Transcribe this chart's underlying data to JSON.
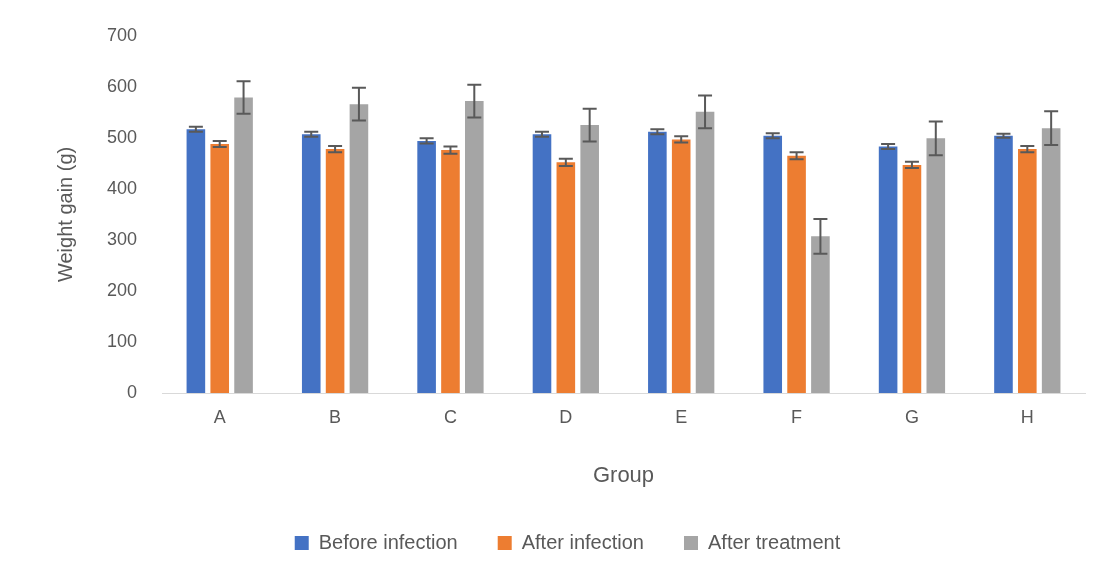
{
  "chart_data": {
    "type": "bar",
    "xlabel": "Group",
    "ylabel": "Weight gain (g)",
    "categories": [
      "A",
      "B",
      "C",
      "D",
      "E",
      "F",
      "G",
      "H"
    ],
    "series": [
      {
        "name": "Before infection",
        "color": "#4472c4",
        "values": [
          517,
          507,
          494,
          507,
          512,
          504,
          483,
          504
        ],
        "errors": [
          5,
          5,
          5,
          5,
          5,
          5,
          5,
          4
        ]
      },
      {
        "name": "After infection",
        "color": "#ed7d31",
        "values": [
          488,
          478,
          476,
          452,
          497,
          465,
          447,
          478
        ],
        "errors": [
          6,
          6,
          7,
          7,
          6,
          7,
          6,
          6
        ]
      },
      {
        "name": "After treatment",
        "color": "#a5a5a5",
        "values": [
          579,
          566,
          572,
          525,
          551,
          307,
          499,
          519
        ],
        "errors": [
          32,
          32,
          32,
          32,
          32,
          34,
          33,
          33
        ]
      }
    ],
    "ylim": [
      0,
      700
    ],
    "yticks": [
      0,
      100,
      200,
      300,
      400,
      500,
      600,
      700
    ],
    "grid": false,
    "legend": "bottom"
  }
}
